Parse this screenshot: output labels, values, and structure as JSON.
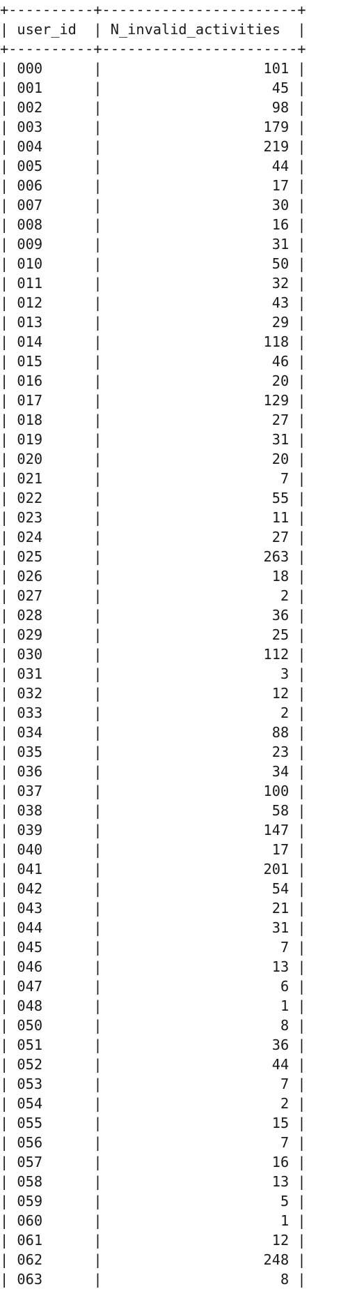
{
  "table": {
    "headers": [
      "user_id",
      "N_invalid_activities"
    ],
    "rows": [
      [
        "000",
        "101"
      ],
      [
        "001",
        "45"
      ],
      [
        "002",
        "98"
      ],
      [
        "003",
        "179"
      ],
      [
        "004",
        "219"
      ],
      [
        "005",
        "44"
      ],
      [
        "006",
        "17"
      ],
      [
        "007",
        "30"
      ],
      [
        "008",
        "16"
      ],
      [
        "009",
        "31"
      ],
      [
        "010",
        "50"
      ],
      [
        "011",
        "32"
      ],
      [
        "012",
        "43"
      ],
      [
        "013",
        "29"
      ],
      [
        "014",
        "118"
      ],
      [
        "015",
        "46"
      ],
      [
        "016",
        "20"
      ],
      [
        "017",
        "129"
      ],
      [
        "018",
        "27"
      ],
      [
        "019",
        "31"
      ],
      [
        "020",
        "20"
      ],
      [
        "021",
        "7"
      ],
      [
        "022",
        "55"
      ],
      [
        "023",
        "11"
      ],
      [
        "024",
        "27"
      ],
      [
        "025",
        "263"
      ],
      [
        "026",
        "18"
      ],
      [
        "027",
        "2"
      ],
      [
        "028",
        "36"
      ],
      [
        "029",
        "25"
      ],
      [
        "030",
        "112"
      ],
      [
        "031",
        "3"
      ],
      [
        "032",
        "12"
      ],
      [
        "033",
        "2"
      ],
      [
        "034",
        "88"
      ],
      [
        "035",
        "23"
      ],
      [
        "036",
        "34"
      ],
      [
        "037",
        "100"
      ],
      [
        "038",
        "58"
      ],
      [
        "039",
        "147"
      ],
      [
        "040",
        "17"
      ],
      [
        "041",
        "201"
      ],
      [
        "042",
        "54"
      ],
      [
        "043",
        "21"
      ],
      [
        "044",
        "31"
      ],
      [
        "045",
        "7"
      ],
      [
        "046",
        "13"
      ],
      [
        "047",
        "6"
      ],
      [
        "048",
        "1"
      ],
      [
        "050",
        "8"
      ],
      [
        "051",
        "36"
      ],
      [
        "052",
        "44"
      ],
      [
        "053",
        "7"
      ],
      [
        "054",
        "2"
      ],
      [
        "055",
        "15"
      ],
      [
        "056",
        "7"
      ],
      [
        "057",
        "16"
      ],
      [
        "058",
        "13"
      ],
      [
        "059",
        "5"
      ],
      [
        "060",
        "1"
      ],
      [
        "061",
        "12"
      ],
      [
        "062",
        "248"
      ],
      [
        "063",
        "8"
      ]
    ]
  }
}
